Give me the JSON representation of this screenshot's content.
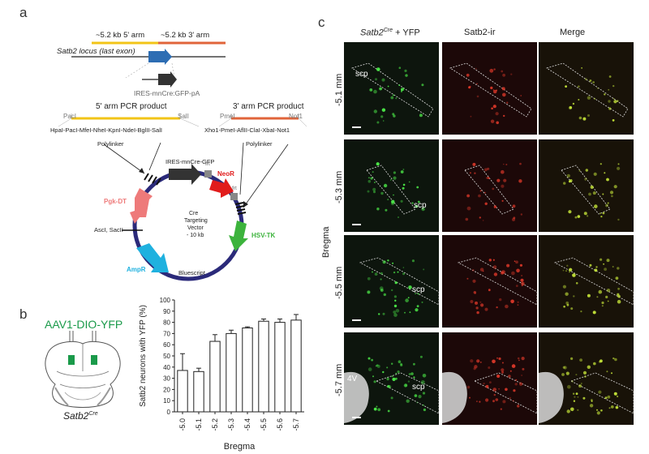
{
  "panel_a": {
    "letter": "a",
    "arm5_label": "~5.2 kb 5' arm",
    "arm3_label": "~5.2 kb 3' arm",
    "locus_label": "Satb2 locus (last exon)",
    "cassette_label": "IRES-mnCre:GFP-pA",
    "pcr5_label": "5' arm PCR product",
    "pcr3_label": "3' arm PCR product",
    "site_paci": "PacI",
    "site_sali": "SalI",
    "site_pmei": "PmeI",
    "site_noti": "Not1",
    "polylinker5_sites": "HpaI-PacI-MfeI-NheI-KpnI-NdeI-BglII-SalI",
    "polylinker3_sites": "Xho1-PmeI-AflII-ClaI-XbaI-Not1",
    "polylinker_label_left": "Polylinker",
    "polylinker_label_right": "Polylinker",
    "ires_label": "IRES-mnCre-GFP",
    "frt_top": "frt",
    "frt_right": "frt",
    "neor": "NeoR",
    "pgkdt": "Pgk-DT",
    "hsvtk": "HSV-TK",
    "ampr": "AmpR",
    "bluescript": "Bluescript",
    "asci": "AscI, SacII",
    "center_line1": "Cre",
    "center_line2": "Targeting",
    "center_line3": "Vector",
    "center_line4": "- 10 kb",
    "colors": {
      "yellow": "#f2c417",
      "orange": "#e0643a",
      "blue": "#2d6db3",
      "ring": "#2b2a7a",
      "neor": "#e11c1c",
      "pgk": "#ee7a7a",
      "hsv": "#3cb33c",
      "ampr": "#1fb1df",
      "dark": "#333333"
    }
  },
  "panel_b": {
    "letter": "b",
    "virus_label": "AAV1-DIO-YFP",
    "mouse_label": "Satb2",
    "mouse_label_sup": "Cre",
    "virus_color": "#1a9a4a"
  },
  "chart_data": {
    "type": "bar",
    "categories": [
      "-5.0",
      "-5.1",
      "-5.2",
      "-5.3",
      "-5.4",
      "-5.5",
      "-5.6",
      "-5.7"
    ],
    "values": [
      37,
      36,
      63,
      70,
      75,
      81,
      80,
      82
    ],
    "errors": [
      15,
      3,
      6,
      3,
      1,
      2,
      3,
      5
    ],
    "xlabel": "Bregma",
    "ylabel": "Satb2 neurons with YFP (%)",
    "ylim": [
      0,
      100
    ],
    "yticks": [
      0,
      10,
      20,
      30,
      40,
      50,
      60,
      70,
      80,
      90,
      100
    ]
  },
  "panel_c": {
    "letter": "c",
    "col1_main": "Satb2",
    "col1_sup": "Cre",
    "col1_tail": " + YFP",
    "col2": "Satb2-ir",
    "col3": "Merge",
    "axis_label": "Bregma",
    "rows": [
      {
        "bregma": "-5.1 mm",
        "scp": "scp",
        "fourth_v": ""
      },
      {
        "bregma": "-5.3 mm",
        "scp": "scp",
        "fourth_v": ""
      },
      {
        "bregma": "-5.5 mm",
        "scp": "scp",
        "fourth_v": ""
      },
      {
        "bregma": "-5.7 mm",
        "scp": "scp",
        "fourth_v": "4V"
      }
    ]
  }
}
